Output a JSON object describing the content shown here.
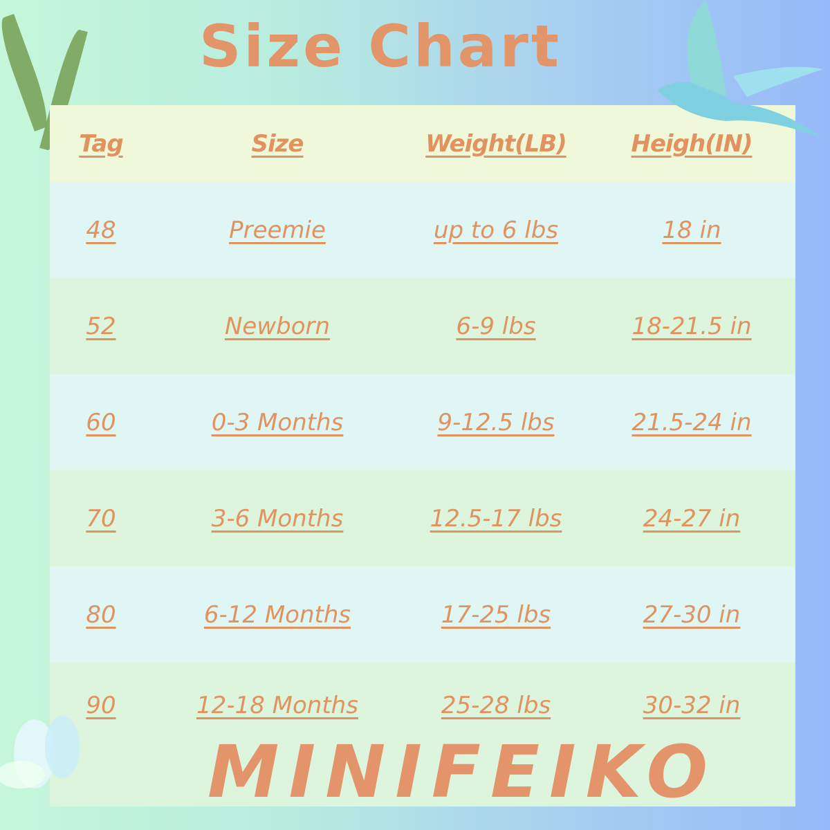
{
  "title": "Size Chart",
  "headers": [
    "Tag",
    "Size",
    "Weight(LB)",
    "Heigh(IN)"
  ],
  "rows": [
    [
      "48",
      "Preemie",
      "up to 6 lbs",
      "18 in"
    ],
    [
      "52",
      "Newborn",
      "6-9 lbs",
      "18-21.5 in"
    ],
    [
      "60",
      "0-3 Months",
      "9-12.5 lbs",
      "21.5-24 in"
    ],
    [
      "70",
      "3-6 Months",
      "12.5-17 lbs",
      "24-27 in"
    ],
    [
      "80",
      "6-12 Months",
      "17-25 lbs",
      "27-30 in"
    ],
    [
      "90",
      "12-18 Months",
      "25-28 lbs",
      "30-32 in"
    ]
  ],
  "brand": "MINIFEIKO",
  "colors": {
    "text": "#e0935f",
    "header_bg": "#f0f8da",
    "row_cyan": "#dff6f5",
    "row_green": "#dcf5dc"
  }
}
